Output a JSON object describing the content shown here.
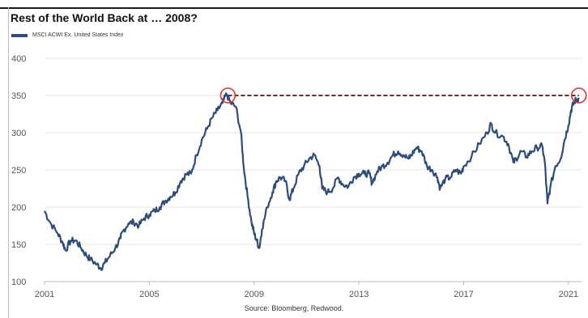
{
  "title": "Rest of the World Back at … 2008?",
  "source": "Source: Bloomberg, Redwood.",
  "chart_data": {
    "type": "line",
    "title": "Rest of the World Back at … 2008?",
    "legend": "MSCI ACWI Ex. United States Index",
    "xlabel": "",
    "ylabel": "",
    "x_range": [
      2001.0,
      2021.0
    ],
    "ylim": [
      100,
      400
    ],
    "y_ticks": [
      100,
      150,
      200,
      250,
      300,
      350,
      400
    ],
    "x_ticks": [
      "2001",
      "2005",
      "2009",
      "2013",
      "2017",
      "2021"
    ],
    "series": [
      {
        "name": "MSCI ACWI Ex. United States Index",
        "color": "#2c4c7c",
        "points": [
          [
            2001.0,
            195
          ],
          [
            2001.2,
            180
          ],
          [
            2001.5,
            165
          ],
          [
            2001.7,
            152
          ],
          [
            2001.8,
            142
          ],
          [
            2002.0,
            155
          ],
          [
            2002.2,
            155
          ],
          [
            2002.4,
            145
          ],
          [
            2002.6,
            135
          ],
          [
            2002.75,
            130
          ],
          [
            2003.0,
            123
          ],
          [
            2003.15,
            118
          ],
          [
            2003.3,
            125
          ],
          [
            2003.5,
            135
          ],
          [
            2003.7,
            145
          ],
          [
            2003.9,
            158
          ],
          [
            2004.0,
            168
          ],
          [
            2004.2,
            178
          ],
          [
            2004.4,
            180
          ],
          [
            2004.6,
            175
          ],
          [
            2004.8,
            185
          ],
          [
            2005.0,
            190
          ],
          [
            2005.2,
            195
          ],
          [
            2005.4,
            200
          ],
          [
            2005.6,
            208
          ],
          [
            2005.8,
            214
          ],
          [
            2006.0,
            220
          ],
          [
            2006.2,
            235
          ],
          [
            2006.4,
            244
          ],
          [
            2006.6,
            245
          ],
          [
            2006.8,
            270
          ],
          [
            2007.0,
            290
          ],
          [
            2007.2,
            305
          ],
          [
            2007.4,
            320
          ],
          [
            2007.6,
            330
          ],
          [
            2007.8,
            340
          ],
          [
            2007.95,
            352
          ],
          [
            2008.1,
            340
          ],
          [
            2008.3,
            335
          ],
          [
            2008.5,
            300
          ],
          [
            2008.6,
            255
          ],
          [
            2008.75,
            215
          ],
          [
            2008.9,
            180
          ],
          [
            2009.0,
            165
          ],
          [
            2009.1,
            155
          ],
          [
            2009.2,
            145
          ],
          [
            2009.3,
            170
          ],
          [
            2009.5,
            200
          ],
          [
            2009.7,
            220
          ],
          [
            2009.85,
            235
          ],
          [
            2010.0,
            240
          ],
          [
            2010.2,
            235
          ],
          [
            2010.35,
            210
          ],
          [
            2010.5,
            225
          ],
          [
            2010.7,
            245
          ],
          [
            2010.9,
            255
          ],
          [
            2011.1,
            265
          ],
          [
            2011.3,
            270
          ],
          [
            2011.5,
            255
          ],
          [
            2011.6,
            225
          ],
          [
            2011.8,
            220
          ],
          [
            2012.0,
            225
          ],
          [
            2012.2,
            240
          ],
          [
            2012.4,
            230
          ],
          [
            2012.6,
            228
          ],
          [
            2012.8,
            240
          ],
          [
            2013.0,
            245
          ],
          [
            2013.2,
            245
          ],
          [
            2013.4,
            245
          ],
          [
            2013.5,
            232
          ],
          [
            2013.7,
            248
          ],
          [
            2013.9,
            255
          ],
          [
            2014.1,
            260
          ],
          [
            2014.3,
            270
          ],
          [
            2014.5,
            275
          ],
          [
            2014.7,
            270
          ],
          [
            2014.9,
            265
          ],
          [
            2015.0,
            270
          ],
          [
            2015.2,
            280
          ],
          [
            2015.4,
            275
          ],
          [
            2015.6,
            255
          ],
          [
            2015.8,
            250
          ],
          [
            2016.0,
            240
          ],
          [
            2016.1,
            225
          ],
          [
            2016.3,
            238
          ],
          [
            2016.5,
            240
          ],
          [
            2016.7,
            250
          ],
          [
            2016.9,
            245
          ],
          [
            2017.0,
            255
          ],
          [
            2017.3,
            268
          ],
          [
            2017.6,
            285
          ],
          [
            2017.9,
            300
          ],
          [
            2018.05,
            312
          ],
          [
            2018.2,
            300
          ],
          [
            2018.5,
            295
          ],
          [
            2018.7,
            285
          ],
          [
            2018.9,
            260
          ],
          [
            2019.0,
            265
          ],
          [
            2019.2,
            275
          ],
          [
            2019.4,
            268
          ],
          [
            2019.6,
            275
          ],
          [
            2019.8,
            280
          ],
          [
            2020.0,
            282
          ],
          [
            2020.1,
            260
          ],
          [
            2020.2,
            205
          ],
          [
            2020.3,
            225
          ],
          [
            2020.5,
            255
          ],
          [
            2020.7,
            265
          ],
          [
            2020.85,
            290
          ],
          [
            2021.0,
            310
          ],
          [
            2021.1,
            330
          ],
          [
            2021.2,
            340
          ],
          [
            2021.3,
            345
          ],
          [
            2021.4,
            345
          ]
        ]
      }
    ],
    "reference_line": {
      "y": 350,
      "from_x": 2008.0,
      "to_x": 2021.4,
      "style": "dashed",
      "color": "#8b1a1a"
    },
    "markers": [
      {
        "x": 2008.0,
        "y": 350,
        "shape": "circle",
        "color": "#e03030"
      },
      {
        "x": 2021.4,
        "y": 350,
        "shape": "circle",
        "color": "#e03030"
      }
    ],
    "grid": {
      "horizontal": true,
      "vertical": false,
      "color": "#e6e6e6"
    }
  }
}
